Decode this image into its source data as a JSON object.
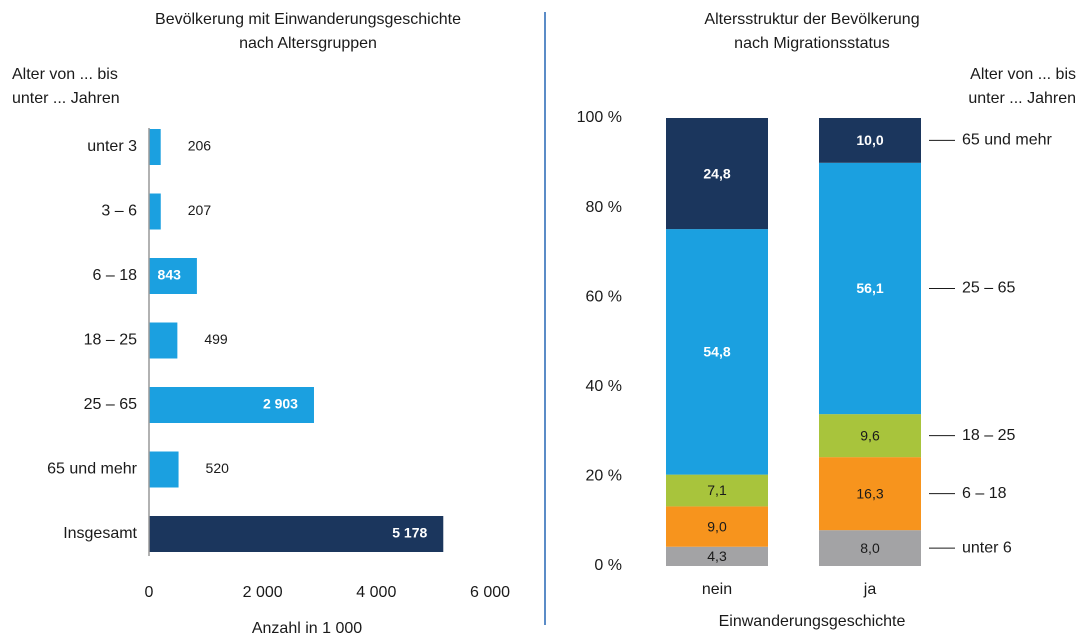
{
  "chart_data": [
    {
      "type": "hbar",
      "title": [
        "Bevölkerung mit Einwanderungsgeschichte",
        "nach Altersgruppen"
      ],
      "ylabel": [
        "Alter von ... bis",
        "unter ... Jahren"
      ],
      "xlabel": "Anzahl in 1 000",
      "categories": [
        "unter 3",
        "3 – 6",
        "6 – 18",
        "18 – 25",
        "25 – 65",
        "65 und mehr",
        "Insgesamt"
      ],
      "values": [
        206,
        207,
        843,
        499,
        2903,
        520,
        5178
      ],
      "value_labels": [
        "206",
        "207",
        "843",
        "499",
        "2 903",
        "520",
        "5 178"
      ],
      "colors": [
        "#1ba0e0",
        "#1ba0e0",
        "#1ba0e0",
        "#1ba0e0",
        "#1ba0e0",
        "#1ba0e0",
        "#1b365d"
      ],
      "xlim": [
        0,
        6000
      ],
      "xticks": [
        0,
        {
          "value": 2000,
          "label": "2 000"
        },
        {
          "value": 4000,
          "label": "4 000"
        },
        {
          "value": 6000,
          "label": "6 000"
        }
      ]
    },
    {
      "type": "stacked_bar",
      "title": [
        "Altersstruktur der Bevölkerung",
        "nach Migrationsstatus"
      ],
      "legend_title": [
        "Alter von ... bis",
        "unter ... Jahren"
      ],
      "xlabel": "Einwanderungsgeschichte",
      "categories": [
        "nein",
        "ja"
      ],
      "series": [
        {
          "name": "unter 6",
          "color": "#a3a3a5",
          "values": [
            4.3,
            8.0
          ],
          "value_labels": [
            "4,3",
            "8,0"
          ]
        },
        {
          "name": "6 – 18",
          "color": "#f7941d",
          "values": [
            9.0,
            16.3
          ],
          "value_labels": [
            "9,0",
            "16,3"
          ]
        },
        {
          "name": "18 – 25",
          "color": "#a8c43c",
          "values": [
            7.1,
            9.6
          ],
          "value_labels": [
            "7,1",
            "9,6"
          ]
        },
        {
          "name": "25 – 65",
          "color": "#1ba0e0",
          "values": [
            54.8,
            56.1
          ],
          "value_labels": [
            "54,8",
            "56,1"
          ]
        },
        {
          "name": "65 und mehr",
          "color": "#1b365d",
          "values": [
            24.8,
            10.0
          ],
          "value_labels": [
            "24,8",
            "10,0"
          ]
        }
      ],
      "ylim": [
        0,
        100
      ],
      "yticks": [
        {
          "value": 0,
          "label": "0 %"
        },
        {
          "value": 20,
          "label": "20 %"
        },
        {
          "value": 40,
          "label": "40 %"
        },
        {
          "value": 60,
          "label": "60 %"
        },
        {
          "value": 80,
          "label": "80 %"
        },
        {
          "value": 100,
          "label": "100 %"
        }
      ],
      "legend": "right"
    }
  ]
}
